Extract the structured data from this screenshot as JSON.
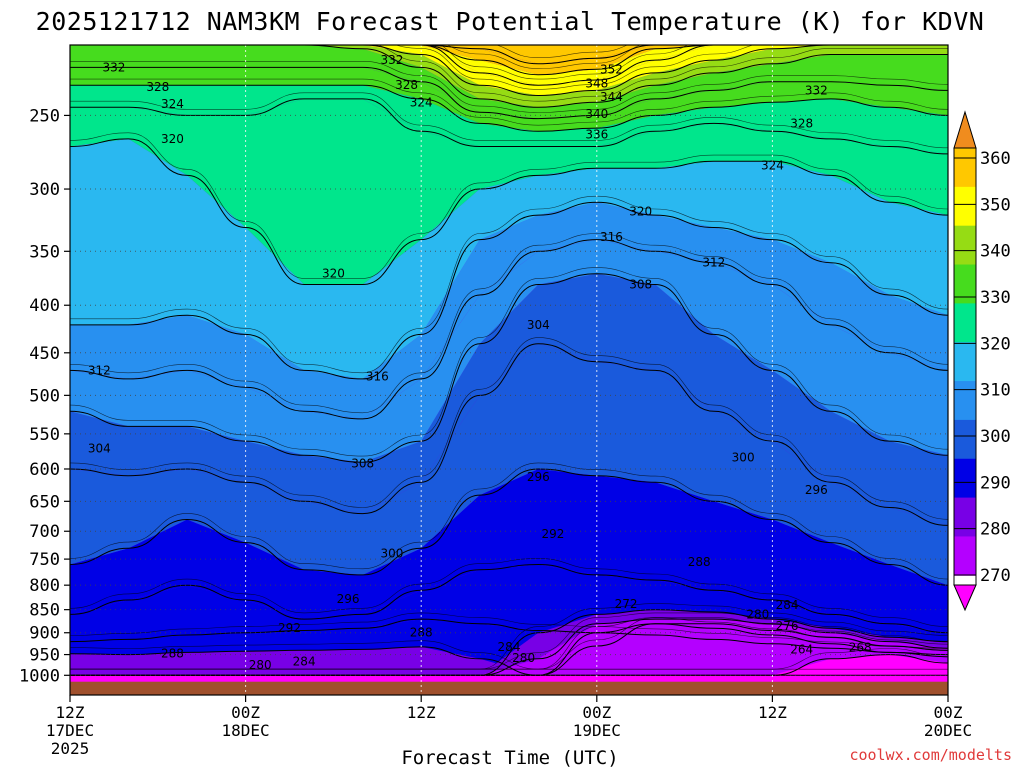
{
  "chart_data": {
    "type": "heatmap",
    "title": "2025121712 NAM3KM Forecast Potential Temperature (K) for KDVN",
    "xlabel": "Forecast Time (UTC)",
    "ylabel": "",
    "y_axis": {
      "scale": "log-pressure",
      "reversed": true,
      "range_hPa": [
        1050,
        210
      ],
      "ticks": [
        250,
        300,
        350,
        400,
        450,
        500,
        550,
        600,
        650,
        700,
        750,
        800,
        850,
        900,
        950,
        1000
      ]
    },
    "x_axis": {
      "range_hours": [
        0,
        60
      ],
      "ticks": [
        {
          "hour": 0,
          "lines": [
            "12Z",
            "17DEC",
            "2025"
          ]
        },
        {
          "hour": 12,
          "lines": [
            "00Z",
            "18DEC"
          ]
        },
        {
          "hour": 24,
          "lines": [
            "12Z"
          ]
        },
        {
          "hour": 36,
          "lines": [
            "00Z",
            "19DEC"
          ]
        },
        {
          "hour": 48,
          "lines": [
            "12Z"
          ]
        },
        {
          "hour": 60,
          "lines": [
            "00Z",
            "20DEC"
          ]
        }
      ]
    },
    "grid": "dotted",
    "colorbar": {
      "levels": [
        270,
        280,
        290,
        300,
        310,
        320,
        330,
        340,
        350,
        360
      ],
      "labels": [
        "270",
        "280",
        "290",
        "300",
        "310",
        "320",
        "330",
        "340",
        "350",
        "360"
      ],
      "colors": [
        "#ff00ff",
        "#b400ff",
        "#7800e6",
        "#0000e6",
        "#1a5adc",
        "#2890f0",
        "#2ab8f0",
        "#00e68c",
        "#46dc1e",
        "#96dc14",
        "#ffff00",
        "#ffc800",
        "#f08c1e"
      ],
      "band_order": [
        "<270",
        "270-280",
        "280-290",
        "290-300",
        "300-310",
        "310-315",
        "315-320",
        "320-330",
        "330-335",
        "335-340",
        "340-350",
        "350-355",
        ">355"
      ]
    },
    "ground_color": "#a0502d",
    "contour_interval_K": 4,
    "columns_hours": [
      0,
      4,
      8,
      12,
      16,
      20,
      24,
      28,
      32,
      36,
      40,
      44,
      48,
      52,
      56,
      60
    ],
    "isentropes": [
      {
        "theta": 288,
        "label": "288",
        "p": [
          948,
          950,
          945,
          942,
          940,
          938,
          932,
          960,
          1000,
          1000,
          1000,
          1000,
          1000,
          1000,
          1000,
          1000
        ]
      },
      {
        "theta": 292,
        "label": "292",
        "p": [
          920,
          915,
          905,
          900,
          895,
          890,
          870,
          880,
          895,
          900,
          905,
          915,
          925,
          935,
          945,
          950
        ]
      },
      {
        "theta": 296,
        "label": "296",
        "p": [
          860,
          830,
          800,
          830,
          870,
          860,
          810,
          770,
          760,
          780,
          790,
          810,
          830,
          860,
          880,
          900
        ]
      },
      {
        "theta": 300,
        "label": "300",
        "p": [
          760,
          730,
          680,
          720,
          770,
          780,
          730,
          640,
          600,
          610,
          620,
          650,
          680,
          720,
          760,
          800
        ]
      },
      {
        "theta": 304,
        "label": "304",
        "p": [
          600,
          610,
          600,
          620,
          650,
          670,
          620,
          500,
          440,
          460,
          470,
          520,
          560,
          620,
          660,
          690
        ]
      },
      {
        "theta": 308,
        "label": "308",
        "p": [
          520,
          540,
          540,
          560,
          580,
          590,
          560,
          440,
          380,
          370,
          380,
          430,
          470,
          520,
          560,
          580
        ]
      },
      {
        "theta": 312,
        "label": "312",
        "p": [
          470,
          480,
          470,
          490,
          520,
          530,
          480,
          390,
          350,
          340,
          350,
          360,
          380,
          420,
          450,
          470
        ]
      },
      {
        "theta": 316,
        "label": "316",
        "p": [
          420,
          420,
          410,
          430,
          470,
          480,
          430,
          340,
          320,
          310,
          320,
          330,
          340,
          360,
          390,
          410
        ]
      },
      {
        "theta": 320,
        "label": "320",
        "p": [
          270,
          265,
          290,
          330,
          380,
          380,
          340,
          300,
          290,
          285,
          285,
          280,
          280,
          290,
          310,
          320
        ]
      },
      {
        "theta": 324,
        "label": "324",
        "p": [
          245,
          245,
          250,
          250,
          240,
          240,
          260,
          270,
          270,
          270,
          260,
          255,
          260,
          265,
          270,
          275
        ]
      },
      {
        "theta": 328,
        "label": "328",
        "p": [
          232,
          232,
          232,
          232,
          232,
          232,
          240,
          255,
          260,
          258,
          250,
          245,
          242,
          240,
          245,
          250
        ]
      },
      {
        "theta": 332,
        "label": "332",
        "p": [
          222,
          222,
          222,
          222,
          222,
          222,
          230,
          248,
          252,
          250,
          240,
          235,
          230,
          230,
          232,
          235
        ]
      },
      {
        "theta": 336,
        "label": "336",
        "p": [
          210,
          210,
          210,
          210,
          210,
          212,
          222,
          240,
          245,
          242,
          232,
          225,
          220,
          215,
          215,
          215
        ]
      },
      {
        "theta": 340,
        "label": "340",
        "p": [
          210,
          210,
          210,
          210,
          210,
          210,
          215,
          232,
          238,
          235,
          225,
          218,
          212,
          210,
          210,
          210
        ]
      },
      {
        "theta": 344,
        "label": "344",
        "p": [
          210,
          210,
          210,
          210,
          210,
          210,
          210,
          225,
          232,
          229,
          218,
          210,
          210,
          210,
          210,
          210
        ]
      },
      {
        "theta": 348,
        "label": "348",
        "p": [
          210,
          210,
          210,
          210,
          210,
          210,
          210,
          218,
          226,
          223,
          212,
          210,
          210,
          210,
          210,
          210
        ]
      },
      {
        "theta": 352,
        "label": "352",
        "p": [
          210,
          210,
          210,
          210,
          210,
          210,
          210,
          212,
          220,
          217,
          210,
          210,
          210,
          210,
          210,
          210
        ]
      }
    ],
    "cold_pool_contours": [
      {
        "theta": 284,
        "label": "284",
        "p": [
          1000,
          1000,
          1000,
          1000,
          1000,
          1000,
          1000,
          1000,
          900,
          860,
          850,
          855,
          870,
          890,
          910,
          920
        ]
      },
      {
        "theta": 280,
        "label": "280",
        "p": [
          1000,
          1000,
          1000,
          1000,
          1000,
          1000,
          1000,
          1000,
          960,
          880,
          870,
          870,
          880,
          900,
          920,
          935
        ]
      },
      {
        "theta": 276,
        "label": "276",
        "p": [
          1000,
          1000,
          1000,
          1000,
          1000,
          1000,
          1000,
          1000,
          1000,
          900,
          880,
          880,
          895,
          910,
          930,
          940
        ]
      },
      {
        "theta": 272,
        "label": "272",
        "p": [
          1000,
          1000,
          1000,
          1000,
          1000,
          1000,
          1000,
          1000,
          1000,
          930,
          880,
          890,
          905,
          925,
          945,
          955
        ]
      },
      {
        "theta": 268,
        "label": "268",
        "p": [
          1000,
          1000,
          1000,
          1000,
          1000,
          1000,
          1000,
          1000,
          1000,
          1000,
          1000,
          1000,
          1000,
          960,
          950,
          970
        ]
      }
    ],
    "contour_labels": [
      {
        "text": "332",
        "hour": 3,
        "p": 222
      },
      {
        "text": "328",
        "hour": 6,
        "p": 233
      },
      {
        "text": "324",
        "hour": 7,
        "p": 243
      },
      {
        "text": "320",
        "hour": 7,
        "p": 265
      },
      {
        "text": "332",
        "hour": 22,
        "p": 218
      },
      {
        "text": "328",
        "hour": 23,
        "p": 232
      },
      {
        "text": "324",
        "hour": 24,
        "p": 242
      },
      {
        "text": "320",
        "hour": 18,
        "p": 370
      },
      {
        "text": "316",
        "hour": 21,
        "p": 477
      },
      {
        "text": "312",
        "hour": 2,
        "p": 470
      },
      {
        "text": "304",
        "hour": 2,
        "p": 570
      },
      {
        "text": "308",
        "hour": 20,
        "p": 592
      },
      {
        "text": "300",
        "hour": 22,
        "p": 740
      },
      {
        "text": "296",
        "hour": 19,
        "p": 828
      },
      {
        "text": "292",
        "hour": 15,
        "p": 890
      },
      {
        "text": "288",
        "hour": 7,
        "p": 948
      },
      {
        "text": "288",
        "hour": 24,
        "p": 900
      },
      {
        "text": "284",
        "hour": 16,
        "p": 966
      },
      {
        "text": "280",
        "hour": 13,
        "p": 975
      },
      {
        "text": "280",
        "hour": 31,
        "p": 958
      },
      {
        "text": "284",
        "hour": 30,
        "p": 932
      },
      {
        "text": "352",
        "hour": 37,
        "p": 223
      },
      {
        "text": "348",
        "hour": 36,
        "p": 231
      },
      {
        "text": "344",
        "hour": 37,
        "p": 239
      },
      {
        "text": "340",
        "hour": 36,
        "p": 249
      },
      {
        "text": "336",
        "hour": 36,
        "p": 262
      },
      {
        "text": "320",
        "hour": 39,
        "p": 317
      },
      {
        "text": "316",
        "hour": 37,
        "p": 338
      },
      {
        "text": "308",
        "hour": 39,
        "p": 380
      },
      {
        "text": "304",
        "hour": 32,
        "p": 420
      },
      {
        "text": "312",
        "hour": 44,
        "p": 360
      },
      {
        "text": "296",
        "hour": 32,
        "p": 612
      },
      {
        "text": "292",
        "hour": 33,
        "p": 705
      },
      {
        "text": "288",
        "hour": 43,
        "p": 755
      },
      {
        "text": "300",
        "hour": 46,
        "p": 583
      },
      {
        "text": "296",
        "hour": 51,
        "p": 632
      },
      {
        "text": "272",
        "hour": 38,
        "p": 838
      },
      {
        "text": "284",
        "hour": 49,
        "p": 840
      },
      {
        "text": "280",
        "hour": 47,
        "p": 860
      },
      {
        "text": "276",
        "hour": 49,
        "p": 885
      },
      {
        "text": "264",
        "hour": 50,
        "p": 938
      },
      {
        "text": "268",
        "hour": 54,
        "p": 933
      },
      {
        "text": "332",
        "hour": 51,
        "p": 235
      },
      {
        "text": "328",
        "hour": 50,
        "p": 255
      },
      {
        "text": "324",
        "hour": 48,
        "p": 283
      }
    ]
  },
  "credit": "coolwx.com/modelts"
}
